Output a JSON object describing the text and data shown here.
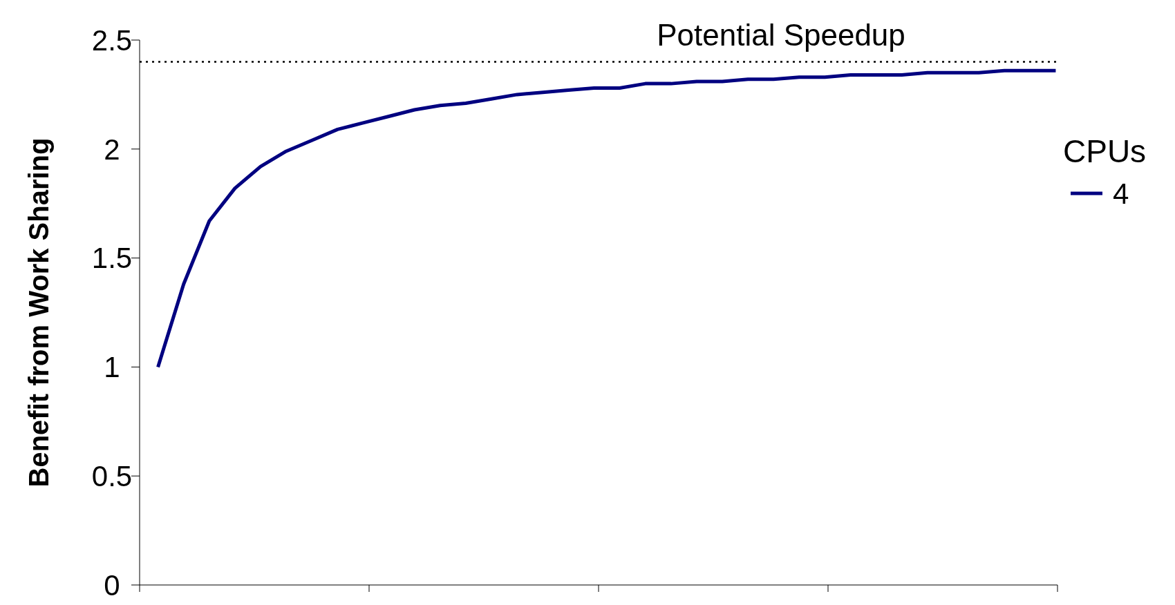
{
  "chart_data": {
    "type": "line",
    "ylabel": "Benefit from Work Sharing",
    "legend_title": "CPUs",
    "legend": "right",
    "categories": [
      null,
      null,
      null,
      null,
      null,
      null,
      null,
      null,
      null,
      null,
      null,
      null,
      null,
      null,
      null,
      null,
      null,
      null,
      null,
      null,
      null,
      null,
      null,
      null,
      null,
      null,
      null,
      null,
      null,
      null,
      null,
      null,
      null,
      null,
      null,
      null
    ],
    "series": [
      {
        "name": "4",
        "color": "#000080",
        "values": [
          1.0,
          1.38,
          1.67,
          1.82,
          1.92,
          1.99,
          2.04,
          2.09,
          2.12,
          2.15,
          2.18,
          2.2,
          2.21,
          2.23,
          2.25,
          2.26,
          2.27,
          2.28,
          2.28,
          2.3,
          2.3,
          2.31,
          2.31,
          2.32,
          2.32,
          2.33,
          2.33,
          2.34,
          2.34,
          2.34,
          2.35,
          2.35,
          2.35,
          2.36,
          2.36,
          2.36
        ]
      }
    ],
    "ylim": [
      0,
      2.5
    ],
    "yticks": [
      0,
      0.5,
      1,
      1.5,
      2,
      2.5
    ],
    "grid": false,
    "marker": "none",
    "line_style": "solid",
    "ref_lines": [
      {
        "axis": "y",
        "value": 2.4,
        "label": "Potential Speedup",
        "line_style": "dotted",
        "color": "#000000"
      }
    ]
  }
}
